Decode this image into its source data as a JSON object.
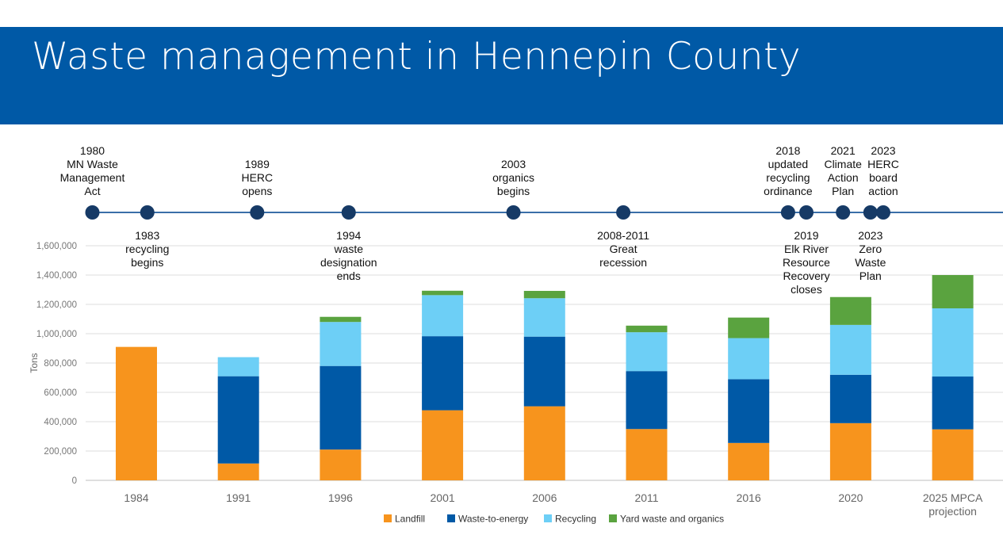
{
  "page": {
    "title": "Waste management in Hennepin County"
  },
  "colors": {
    "banner": "#0059a6",
    "timeline": "#3a6fa8",
    "dot": "#163a66",
    "landfill": "#f7941d",
    "waste_to_energy": "#0059a6",
    "recycling": "#6dcff6",
    "yard_waste": "#5aa33f"
  },
  "timeline": {
    "events": [
      {
        "year": 1980,
        "lines": [
          "1980",
          "MN Waste",
          "Management",
          "Act"
        ],
        "side": "above"
      },
      {
        "year": 1983,
        "lines": [
          "1983",
          "recycling",
          "begins"
        ],
        "side": "below"
      },
      {
        "year": 1989,
        "lines": [
          "1989",
          "HERC",
          "opens"
        ],
        "side": "above"
      },
      {
        "year": 1994,
        "lines": [
          "1994",
          "waste",
          "designation",
          "ends"
        ],
        "side": "below"
      },
      {
        "year": 2003,
        "lines": [
          "2003",
          "organics",
          "begins"
        ],
        "side": "above"
      },
      {
        "year": 2009,
        "lines": [
          "2008-2011",
          "Great",
          "recession"
        ],
        "side": "below"
      },
      {
        "year": 2018,
        "lines": [
          "2018",
          "updated",
          "recycling",
          "ordinance"
        ],
        "side": "above"
      },
      {
        "year": 2019,
        "lines": [
          "2019",
          "Elk River",
          "Resource",
          "Recovery",
          "closes"
        ],
        "side": "below"
      },
      {
        "year": 2021,
        "lines": [
          "2021",
          "Climate",
          "Action",
          "Plan"
        ],
        "side": "above"
      },
      {
        "year": 2022.5,
        "lines": [
          "2023",
          "Zero",
          "Waste",
          "Plan"
        ],
        "side": "below"
      },
      {
        "year": 2023.2,
        "lines": [
          "2023",
          "HERC",
          "board",
          "action"
        ],
        "side": "above"
      }
    ]
  },
  "chart_data": {
    "type": "bar",
    "stacked": true,
    "title": "",
    "xlabel": "",
    "ylabel": "Tons",
    "ylim": [
      0,
      1600000
    ],
    "yticks": [
      0,
      200000,
      400000,
      600000,
      800000,
      1000000,
      1200000,
      1400000,
      1600000
    ],
    "ytick_labels": [
      "0",
      "200,000",
      "400,000",
      "600,000",
      "800,000",
      "1,000,000",
      "1,200,000",
      "1,400,000",
      "1,600,000"
    ],
    "grid": true,
    "legend_position": "bottom",
    "categories": [
      [
        "1984"
      ],
      [
        "1991"
      ],
      [
        "1996"
      ],
      [
        "2001"
      ],
      [
        "2006"
      ],
      [
        "2011"
      ],
      [
        "2016"
      ],
      [
        "2020"
      ],
      [
        "2025 MPCA",
        "projection"
      ]
    ],
    "series": [
      {
        "name": "Landfill",
        "color": "#f7941d",
        "values": [
          910000,
          115000,
          210000,
          478000,
          505000,
          350000,
          255000,
          390000,
          348000
        ]
      },
      {
        "name": "Waste-to-energy",
        "color": "#0059a6",
        "values": [
          0,
          595000,
          570000,
          505000,
          475000,
          395000,
          435000,
          330000,
          360000
        ]
      },
      {
        "name": "Recycling",
        "color": "#6dcff6",
        "values": [
          0,
          130000,
          300000,
          280000,
          262000,
          265000,
          280000,
          340000,
          465000
        ]
      },
      {
        "name": "Yard waste and organics",
        "color": "#5aa33f",
        "values": [
          0,
          0,
          35000,
          30000,
          50000,
          45000,
          140000,
          190000,
          227000
        ]
      }
    ]
  }
}
